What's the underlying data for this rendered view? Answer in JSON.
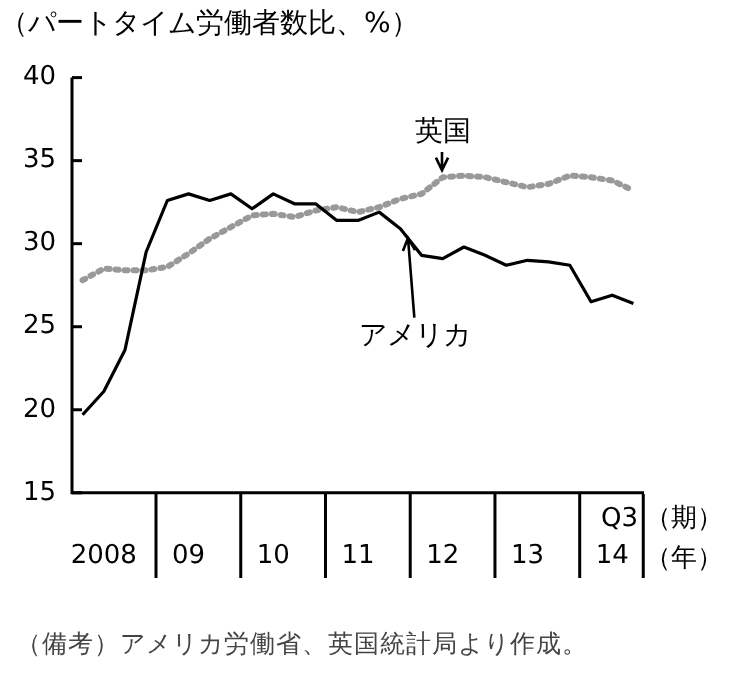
{
  "chart_data": {
    "type": "line",
    "title": "（パートタイム労働者数比、%）",
    "categories": [
      null,
      "2008",
      null,
      null,
      null,
      "09",
      null,
      null,
      null,
      "10",
      null,
      null,
      null,
      "11",
      null,
      null,
      null,
      "12",
      null,
      null,
      null,
      "13",
      null,
      null,
      null,
      "14",
      null
    ],
    "series": [
      {
        "name": "アメリカ",
        "color": "#000000",
        "line_style": "solid",
        "values": [
          19.7,
          21.1,
          23.6,
          29.5,
          32.6,
          33.0,
          32.6,
          33.0,
          32.1,
          33.0,
          32.4,
          32.4,
          31.4,
          31.4,
          31.9,
          30.9,
          29.3,
          29.1,
          29.8,
          29.3,
          28.7,
          29.0,
          28.9,
          28.7,
          26.5,
          26.9,
          26.4
        ]
      },
      {
        "name": "英国",
        "color": "#999999",
        "line_style": "dotted",
        "values": [
          27.8,
          28.5,
          28.4,
          28.4,
          28.6,
          29.4,
          30.3,
          31.0,
          31.7,
          31.8,
          31.6,
          32.0,
          32.2,
          31.9,
          32.2,
          32.7,
          33.0,
          34.0,
          34.1,
          34.0,
          33.7,
          33.4,
          33.6,
          34.1,
          34.0,
          33.8,
          33.2
        ]
      }
    ],
    "ylim": [
      15,
      40
    ],
    "yticks": [
      15,
      20,
      25,
      30,
      35,
      40
    ],
    "grid": false,
    "legend": false,
    "marker": "none",
    "annotations": [
      "Q3",
      "（期）",
      "（年）",
      "（備考）アメリカ労働省、英国統計局より作成。"
    ]
  }
}
